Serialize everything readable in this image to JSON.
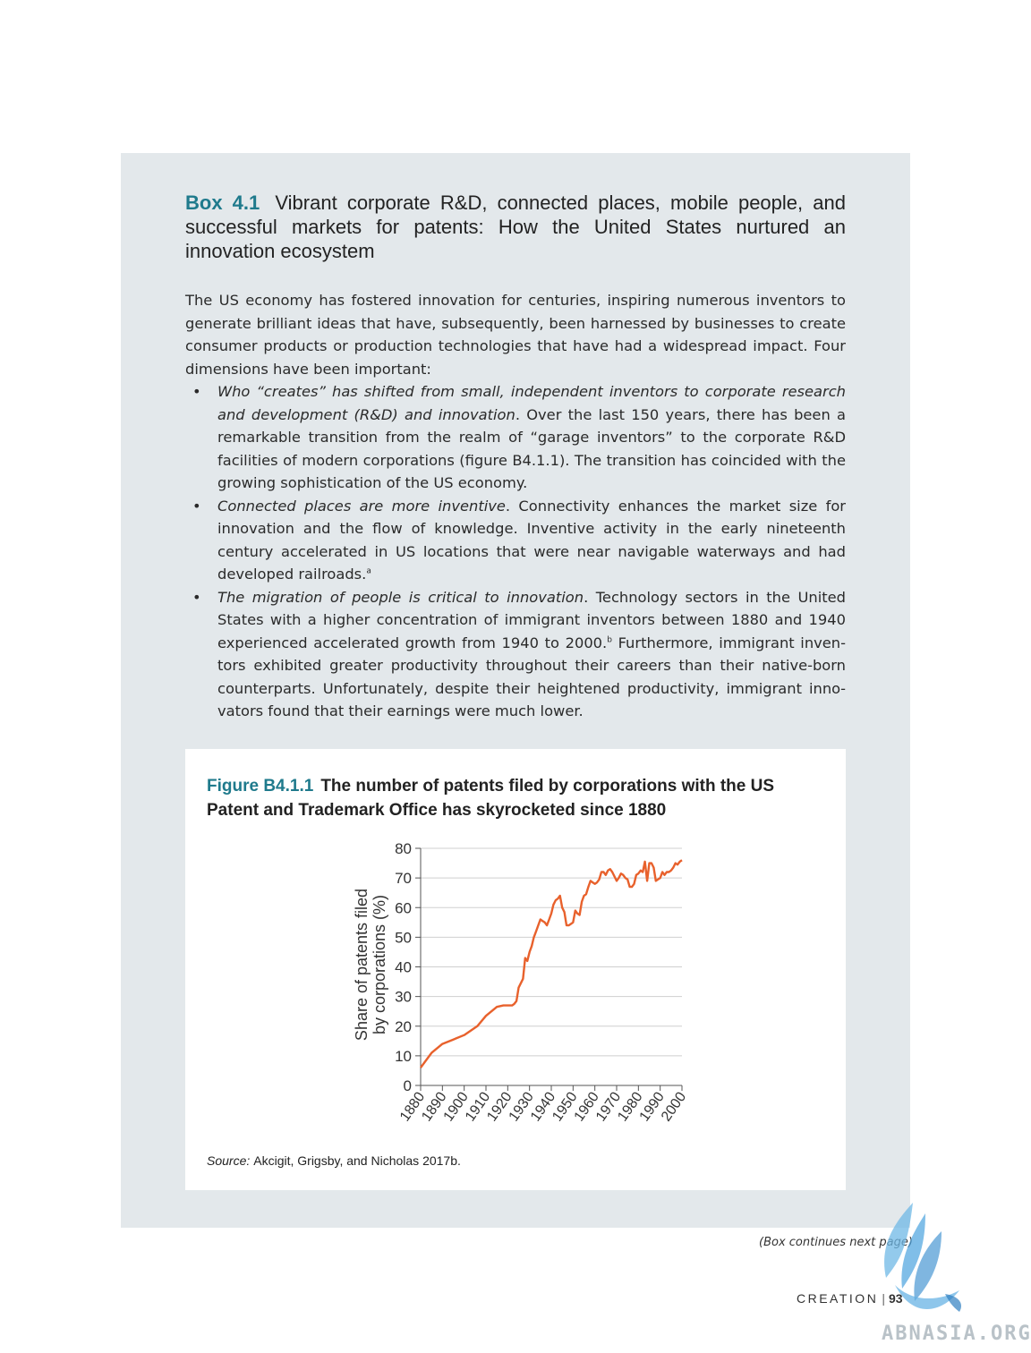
{
  "box": {
    "label": "Box 4.1",
    "title": "Vibrant corporate R&D, connected places, mobile people, and successful markets for patents: How the United States nurtured an innovation ecosystem",
    "intro": "The US economy has fostered innovation for centuries, inspiring numerous inventors to generate brilliant ideas that have, subsequently, been harnessed by businesses to create consumer products or production technologies that have had a widespread impact. Four dimensions have been important:",
    "bullets": [
      {
        "lead": "Who “creates” has shifted from small, independent inventors to corporate research and development (R&D) and innovation",
        "text": ". Over the last 150 years, there has been a remark­able transition from the realm of “garage inventors” to the corporate R&D facilities of modern corporations (figure B4.1.1). The transition has coincided with the growing sophistication of the US economy.",
        "note": ""
      },
      {
        "lead": "Connected places are more inventive",
        "text": ". Connectivity enhances the market size for inno­vation and the flow of knowledge. Inventive activity in the early nineteenth century accelerated in US locations that were near navigable waterways and had developed railroads.",
        "note": "a"
      },
      {
        "lead": "The migration of people is critical to innovation",
        "text": ". Technology sectors in the United States with a higher concentration of immigrant inventors between 1880 and 1940 experienced accelerated growth from 1940 to 2000.",
        "note": "b",
        "text2": " Furthermore, immigrant inven­tors exhibited greater productivity throughout their careers than their native-born counterparts. Unfortunately, despite their heightened productivity, immigrant inno­vators found that their earnings were much lower."
      }
    ]
  },
  "figure": {
    "label": "Figure B4.1.1",
    "title": "The number of patents filed by corporations with the US Patent and Trademark Office has skyrocketed since 1880",
    "source_label": "Source:",
    "source_text": "Akcigit, Grigsby, and Nicholas 2017b."
  },
  "chart_data": {
    "type": "line",
    "title": "",
    "xlabel": "",
    "ylabel": [
      "Share of patents filed",
      "by corporations (%)"
    ],
    "xlim": [
      1880,
      2000
    ],
    "ylim": [
      0,
      80
    ],
    "xticks": [
      "1880",
      "1890",
      "1900",
      "1910",
      "1920",
      "1930",
      "1940",
      "1950",
      "1960",
      "1970",
      "1980",
      "1990",
      "2000"
    ],
    "yticks": [
      "0",
      "10",
      "20",
      "30",
      "40",
      "50",
      "60",
      "70",
      "80"
    ],
    "grid": "horizontal",
    "color": "#e8612c",
    "series": [
      {
        "name": "",
        "x": [
          1880,
          1885,
          1890,
          1895,
          1900,
          1903,
          1906,
          1910,
          1915,
          1918,
          1920,
          1922,
          1923,
          1924,
          1925,
          1927,
          1928,
          1929,
          1930,
          1931,
          1932,
          1933,
          1934,
          1935,
          1936,
          1937,
          1938,
          1939,
          1940,
          1941,
          1942,
          1943,
          1944,
          1945,
          1946,
          1947,
          1948,
          1949,
          1950,
          1951,
          1952,
          1953,
          1954,
          1955,
          1956,
          1957,
          1958,
          1959,
          1960,
          1961,
          1962,
          1963,
          1964,
          1965,
          1966,
          1967,
          1968,
          1969,
          1970,
          1971,
          1972,
          1973,
          1974,
          1975,
          1976,
          1977,
          1978,
          1979,
          1980,
          1981,
          1982,
          1983,
          1984,
          1985,
          1986,
          1987,
          1988,
          1989,
          1990,
          1991,
          1992,
          1993,
          1994,
          1995,
          1996,
          1997,
          1998,
          1999,
          2000
        ],
        "y": [
          6,
          11,
          14,
          15.5,
          17,
          18.5,
          20,
          23.5,
          26.5,
          27,
          27,
          27,
          27.5,
          28.5,
          33,
          36,
          43,
          42,
          45,
          47,
          50,
          52,
          54,
          56,
          55.5,
          55,
          54,
          56,
          58,
          61,
          62.5,
          63,
          64,
          60,
          58.5,
          54,
          54,
          54.5,
          55,
          59,
          58,
          57.5,
          62,
          64,
          64.5,
          67,
          69,
          68.5,
          68,
          68.5,
          69.5,
          72,
          72,
          71,
          72.5,
          73,
          72,
          70.5,
          69,
          70,
          71.5,
          71,
          70,
          69.5,
          67,
          67,
          68,
          71,
          71.5,
          72.5,
          72,
          75.5,
          69,
          75,
          75,
          73.5,
          69,
          69.5,
          70,
          72,
          71,
          72,
          72,
          72.5,
          73.5,
          75,
          74.5,
          75.5,
          76
        ]
      }
    ]
  },
  "footer": {
    "continues": "(Box continues next page)",
    "section": "CREATION",
    "page": "93",
    "watermark": "ABNASIA.ORG"
  }
}
